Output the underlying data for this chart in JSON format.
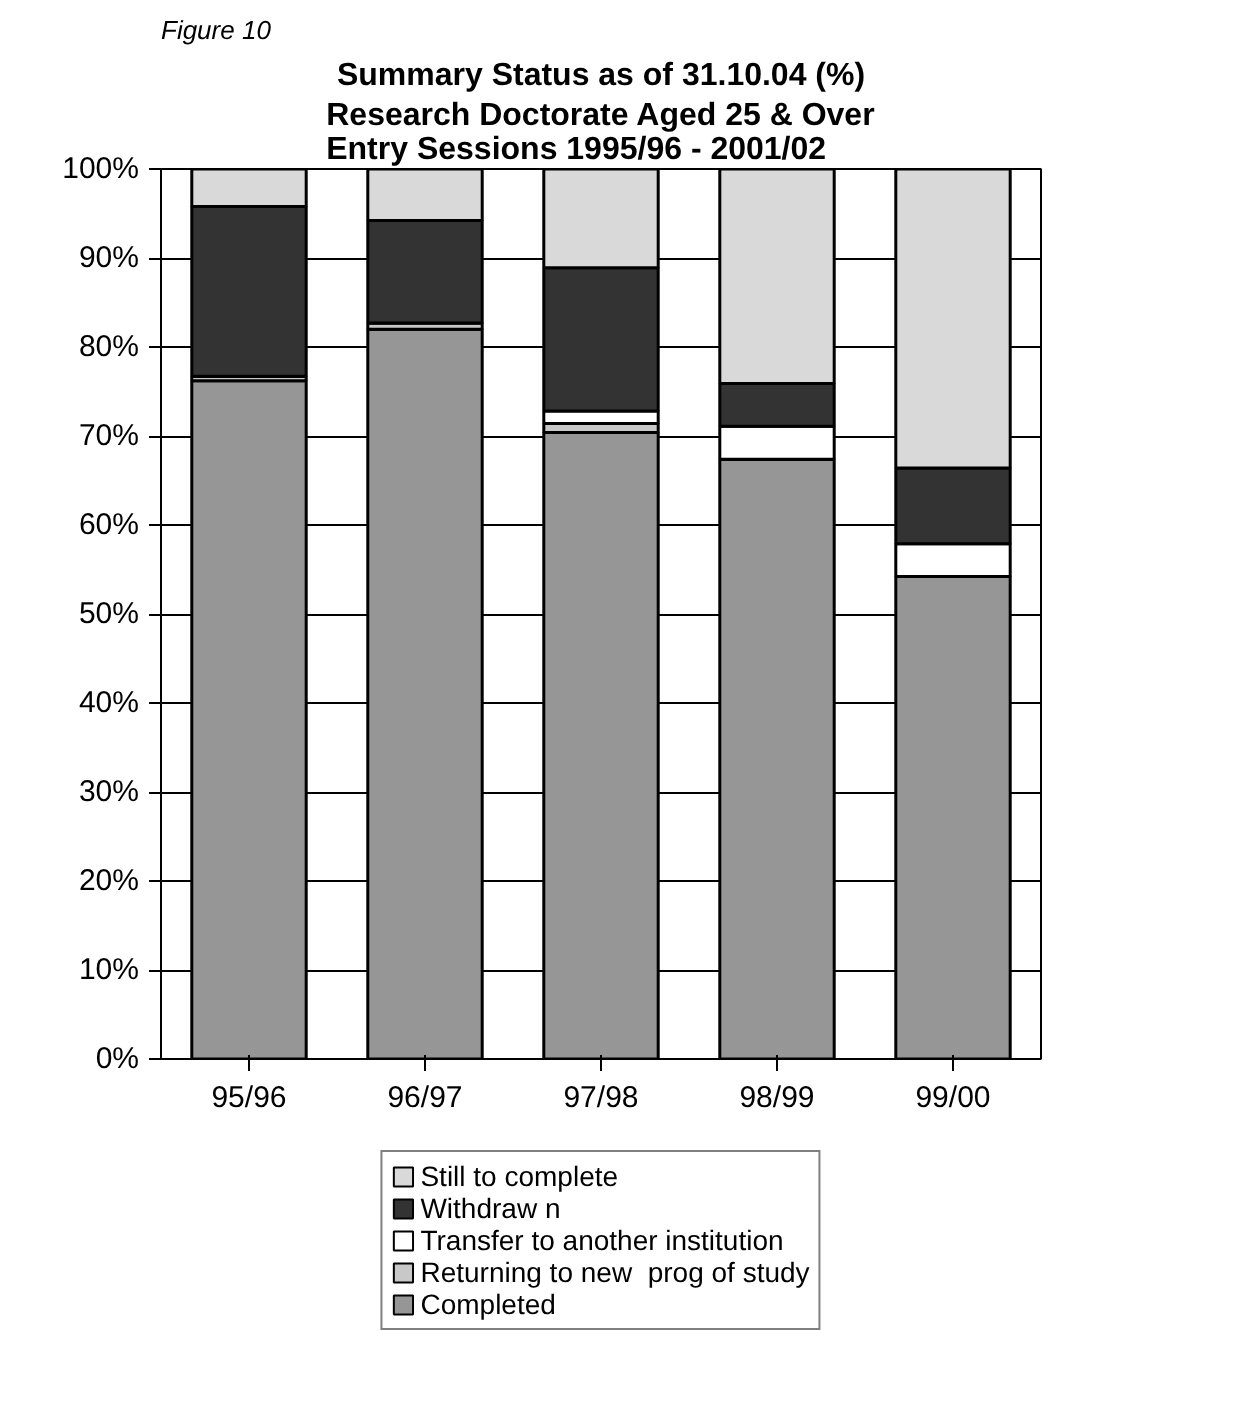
{
  "chart_data": {
    "type": "bar",
    "stacked": true,
    "title": "Summary Status as of 31.10.04 (%)",
    "subtitle": "Research Doctorate Aged 25 & Over\nEntry Sessions 1995/96 - 2001/02",
    "annotations": [
      "Figure 10"
    ],
    "categories": [
      "95/96",
      "96/97",
      "97/98",
      "98/99",
      "99/00"
    ],
    "series": [
      {
        "name": "Completed",
        "color": "#969696",
        "values": [
          76.2,
          82.0,
          70.4,
          67.4,
          54.2
        ]
      },
      {
        "name": "Returning to new  prog of study",
        "color": "#c8c8c8",
        "values": [
          0.5,
          0.7,
          1.0,
          0,
          0
        ]
      },
      {
        "name": "Transfer to another institution",
        "color": "#ffffff",
        "values": [
          0,
          0,
          1.4,
          3.7,
          3.7
        ]
      },
      {
        "name": "Withdraw n",
        "color": "#333333",
        "values": [
          19.1,
          11.5,
          16.1,
          4.8,
          8.5
        ]
      },
      {
        "name": "Still to complete",
        "color": "#d9d9d9",
        "values": [
          4.2,
          5.8,
          11.1,
          24.1,
          33.6
        ]
      }
    ],
    "ylim": [
      0,
      100
    ],
    "yticks": [
      {
        "value": 0,
        "label": "0%"
      },
      {
        "value": 10,
        "label": "10%"
      },
      {
        "value": 20,
        "label": "20%"
      },
      {
        "value": 30,
        "label": "30%"
      },
      {
        "value": 40,
        "label": "40%"
      },
      {
        "value": 50,
        "label": "50%"
      },
      {
        "value": 60,
        "label": "60%"
      },
      {
        "value": 70,
        "label": "70%"
      },
      {
        "value": 80,
        "label": "80%"
      },
      {
        "value": 90,
        "label": "90%"
      },
      {
        "value": 100,
        "label": "100%"
      }
    ],
    "grid": "y",
    "legend": "bottom"
  }
}
